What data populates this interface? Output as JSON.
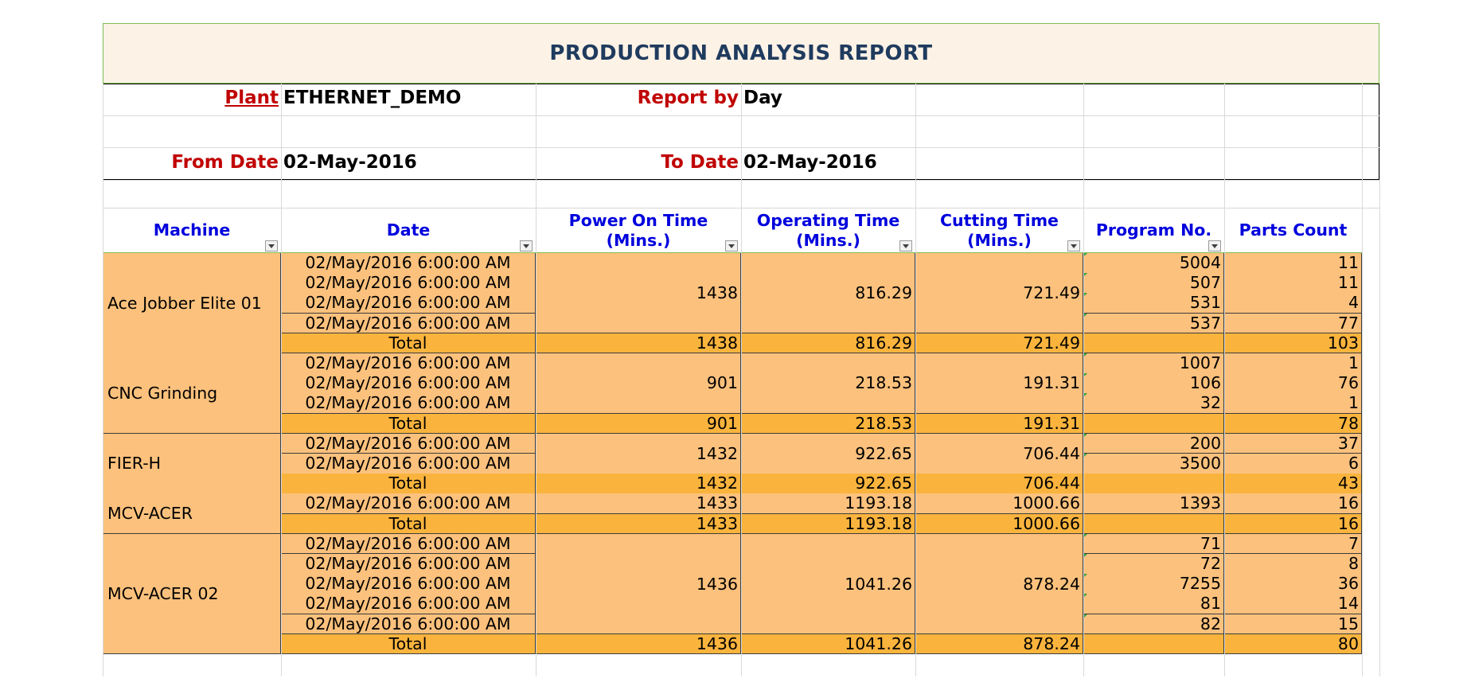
{
  "report": {
    "title": "PRODUCTION ANALYSIS REPORT",
    "plant_label": "Plant",
    "plant_value": "ETHERNET_DEMO",
    "report_by_label": "Report by",
    "report_by_value": "Day",
    "from_date_label": "From Date",
    "from_date_value": "02-May-2016",
    "to_date_label": "To Date",
    "to_date_value": "02-May-2016"
  },
  "columns": [
    "Machine",
    "Date",
    "Power On Time\n(Mins.)",
    "Operating Time\n(Mins.)",
    "Cutting Time\n(Mins.)",
    "Program No.",
    "Parts Count"
  ],
  "total_label": "Total",
  "groups": [
    {
      "machine": "Ace Jobber Elite 01",
      "dates": [
        "02/May/2016 6:00:00 AM",
        "02/May/2016 6:00:00 AM",
        "02/May/2016 6:00:00 AM",
        "02/May/2016 6:00:00 AM"
      ],
      "power_on": "1438",
      "operating": "816.29",
      "cutting": "721.49",
      "programs": [
        "5004",
        "507",
        "531",
        "537"
      ],
      "parts": [
        "11",
        "11",
        "4",
        "77"
      ],
      "total": {
        "power_on": "1438",
        "operating": "816.29",
        "cutting": "721.49",
        "parts": "103"
      }
    },
    {
      "machine": "CNC Grinding",
      "dates": [
        "02/May/2016 6:00:00 AM",
        "02/May/2016 6:00:00 AM",
        "02/May/2016 6:00:00 AM"
      ],
      "power_on": "901",
      "operating": "218.53",
      "cutting": "191.31",
      "programs": [
        "1007",
        "106",
        "32"
      ],
      "parts": [
        "1",
        "76",
        "1"
      ],
      "total": {
        "power_on": "901",
        "operating": "218.53",
        "cutting": "191.31",
        "parts": "78"
      }
    },
    {
      "machine": "FIER-H",
      "dates": [
        "02/May/2016 6:00:00 AM",
        "02/May/2016 6:00:00 AM"
      ],
      "power_on": "1432",
      "operating": "922.65",
      "cutting": "706.44",
      "programs": [
        "200",
        "3500"
      ],
      "parts": [
        "37",
        "6"
      ],
      "total": {
        "power_on": "1432",
        "operating": "922.65",
        "cutting": "706.44",
        "parts": "43"
      }
    },
    {
      "machine": "MCV-ACER",
      "dates": [
        "02/May/2016 6:00:00 AM"
      ],
      "power_on": "1433",
      "operating": "1193.18",
      "cutting": "1000.66",
      "programs": [
        "1393"
      ],
      "parts": [
        "16"
      ],
      "total": {
        "power_on": "1433",
        "operating": "1193.18",
        "cutting": "1000.66",
        "parts": "16"
      }
    },
    {
      "machine": "MCV-ACER 02",
      "dates": [
        "02/May/2016 6:00:00 AM",
        "02/May/2016 6:00:00 AM",
        "02/May/2016 6:00:00 AM",
        "02/May/2016 6:00:00 AM",
        "02/May/2016 6:00:00 AM"
      ],
      "power_on": "1436",
      "operating": "1041.26",
      "cutting": "878.24",
      "programs": [
        "71",
        "72",
        "7255",
        "81",
        "82"
      ],
      "parts": [
        "7",
        "8",
        "36",
        "14",
        "15"
      ],
      "total": {
        "power_on": "1436",
        "operating": "1041.26",
        "cutting": "878.24",
        "parts": "80"
      }
    }
  ],
  "colors": {
    "title_band": "#fdf2e6",
    "title_text": "#1f3b5e",
    "label_red": "#c00000",
    "header_blue": "#0000dd",
    "body_fill": "#fcc17c",
    "total_fill": "#fab43d"
  }
}
